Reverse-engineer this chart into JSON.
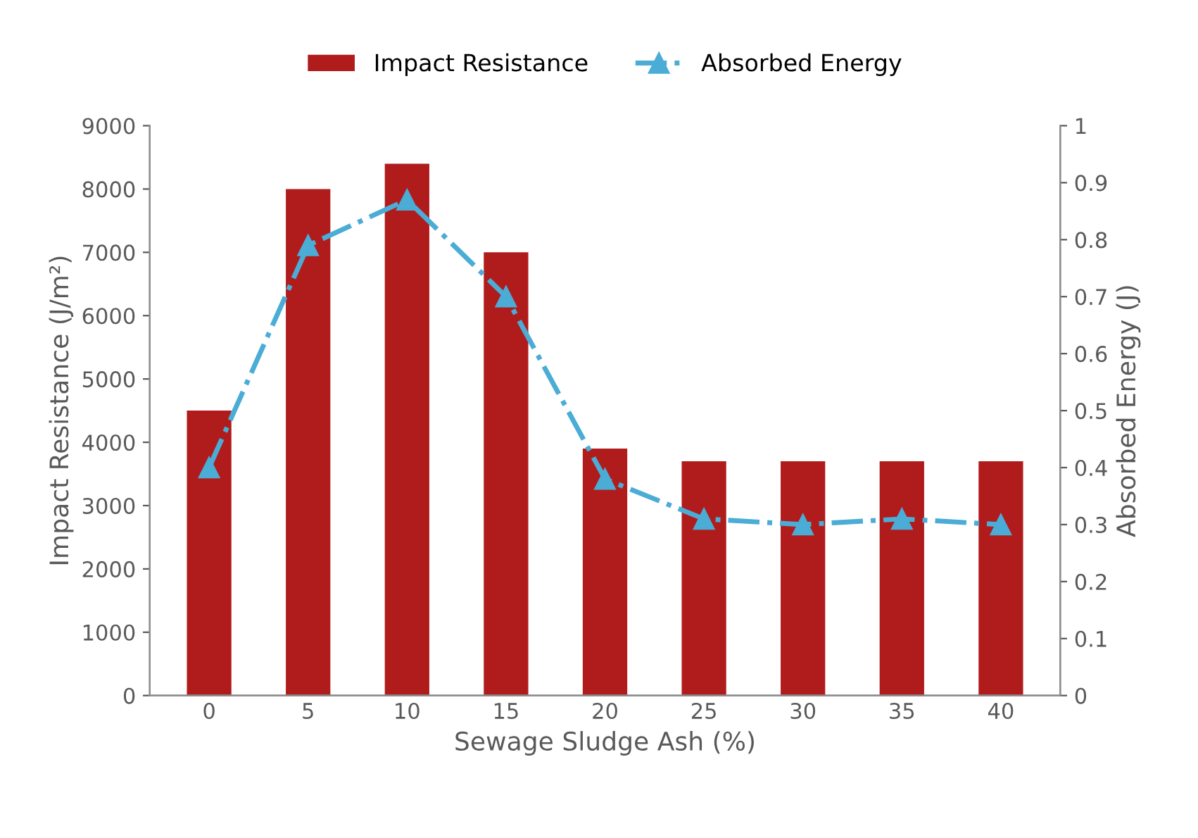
{
  "chart_data": {
    "type": "bar",
    "xlabel": "Sewage Sludge Ash (%)",
    "ylabel": "Impact Resistance (J/m²)",
    "y2label": "Absorbed Energy (J)",
    "categories": [
      "0",
      "5",
      "10",
      "15",
      "20",
      "25",
      "30",
      "35",
      "40"
    ],
    "series": [
      {
        "name": "Impact Resistance",
        "color": "#b01c1c",
        "values": [
          4500,
          8000,
          8400,
          7000,
          3900,
          3700,
          3700,
          3700,
          3700
        ]
      },
      {
        "name": "Absorbed Energy",
        "type": "line",
        "axis": "y2",
        "color": "#4bacd6",
        "marker": "triangle",
        "line_style": "dashdot",
        "values": [
          0.4,
          0.79,
          0.87,
          0.7,
          0.38,
          0.31,
          0.3,
          0.31,
          0.3
        ]
      }
    ],
    "ylim": [
      0,
      9000
    ],
    "yticks": [
      0,
      1000,
      2000,
      3000,
      4000,
      5000,
      6000,
      7000,
      8000,
      9000
    ],
    "y2lim": [
      0,
      1
    ],
    "y2ticks": [
      0,
      0.1,
      0.2,
      0.3,
      0.4,
      0.5,
      0.6,
      0.7,
      0.8,
      0.9,
      1
    ],
    "grid": false,
    "legend": "top"
  }
}
